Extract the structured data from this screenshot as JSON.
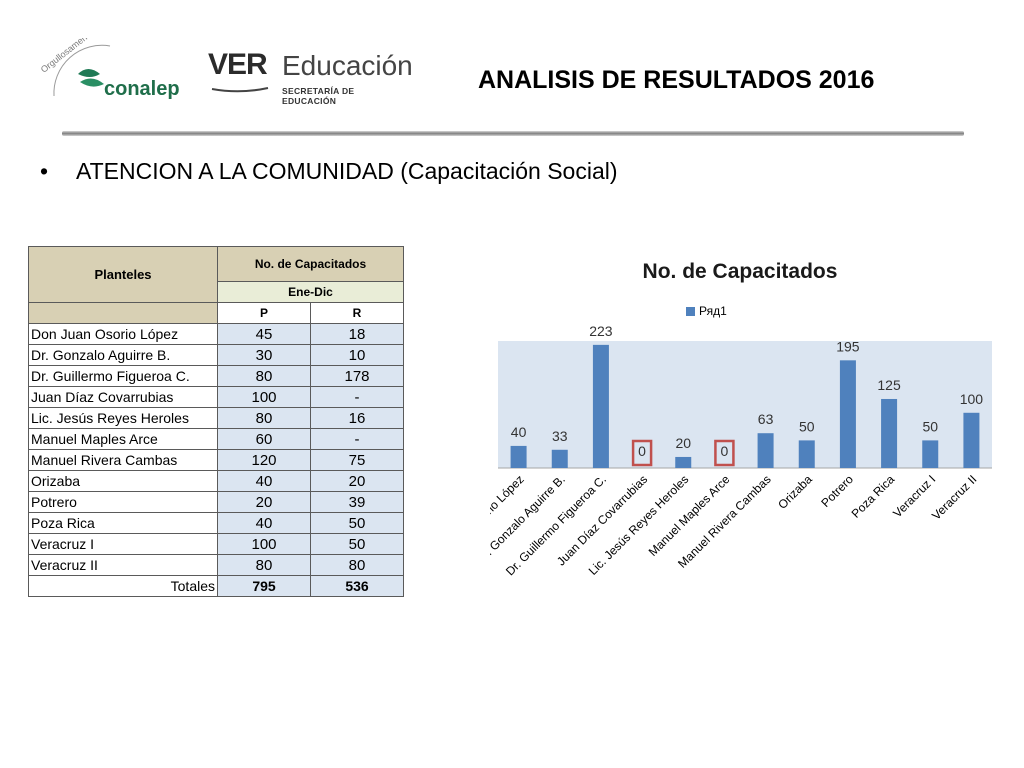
{
  "header": {
    "conalep_brand": "conalep",
    "conalep_arc_text": "Orgullosamente",
    "ver_mark": "VER",
    "ver_education": "Educación",
    "ver_subtitle": "SECRETARÍA DE EDUCACIÓN",
    "title": "ANALISIS DE RESULTADOS 2016"
  },
  "bullet": {
    "symbol": "•",
    "text": "ATENCION A LA COMUNIDAD (Capacitación Social)"
  },
  "table": {
    "col_planteles": "Planteles",
    "col_capacitados": "No. de Capacitados",
    "period": "Ene-Dic",
    "col_p": "P",
    "col_r": "R",
    "rows": [
      {
        "name": "Don Juan Osorio López",
        "p": "45",
        "r": "18"
      },
      {
        "name": "Dr. Gonzalo Aguirre B.",
        "p": "30",
        "r": "10"
      },
      {
        "name": "Dr. Guillermo Figueroa C.",
        "p": "80",
        "r": "178"
      },
      {
        "name": "Juan Díaz Covarrubias",
        "p": "100",
        "r": "-"
      },
      {
        "name": "Lic. Jesús Reyes Heroles",
        "p": "80",
        "r": "16"
      },
      {
        "name": "Manuel Maples Arce",
        "p": "60",
        "r": "-"
      },
      {
        "name": "Manuel Rivera Cambas",
        "p": "120",
        "r": "75"
      },
      {
        "name": "Orizaba",
        "p": "40",
        "r": "20"
      },
      {
        "name": "Potrero",
        "p": "20",
        "r": "39"
      },
      {
        "name": "Poza Rica",
        "p": "40",
        "r": "50"
      },
      {
        "name": "Veracruz I",
        "p": "100",
        "r": "50"
      },
      {
        "name": "Veracruz II",
        "p": "80",
        "r": "80"
      }
    ],
    "totals_label": "Totales",
    "total_p": "795",
    "total_r": "536"
  },
  "chart_data": {
    "type": "bar",
    "title": "No. de Capacitados",
    "categories": [
      "Don Juan Osorio López",
      "Dr. Gonzalo Aguirre B.",
      "Dr. Guillermo Figueroa C.",
      "Juan Díaz Covarrubias",
      "Lic. Jesús Reyes Heroles",
      "Manuel Maples Arce",
      "Manuel Rivera Cambas",
      "Orizaba",
      "Potrero",
      "Poza Rica",
      "Veracruz I",
      "Veracruz II"
    ],
    "series": [
      {
        "name": "Ряд1",
        "values": [
          40,
          33,
          223,
          0,
          20,
          0,
          63,
          50,
          195,
          125,
          50,
          100
        ]
      }
    ],
    "highlighted_zero_labels": [
      3,
      5
    ],
    "ylim": [
      0,
      230
    ],
    "grid": false,
    "legend": "top-center",
    "colors": {
      "bar": "#4f81bd",
      "plot_bg": "#dbe5f1",
      "highlight_box": "#c0504d"
    }
  }
}
